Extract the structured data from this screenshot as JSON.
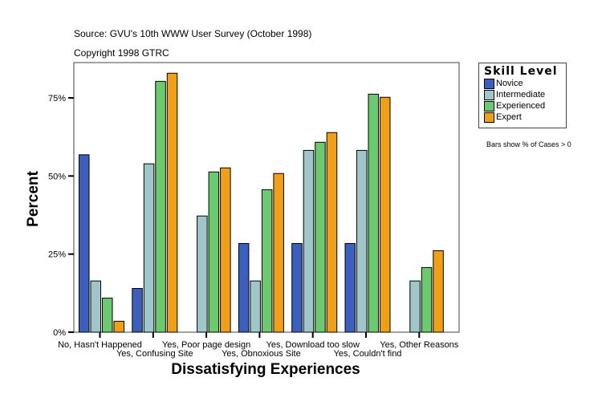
{
  "header": {
    "source": "Source: GVU's 10th WWW User Survey (October 1998)",
    "copyright": "Copyright 1998 GTRC"
  },
  "note": "Bars show % of Cases > 0",
  "chart_data": {
    "type": "bar",
    "xlabel": "Dissatisfying Experiences",
    "ylabel": "Percent",
    "ylim": [
      0,
      86
    ],
    "yticks": [
      {
        "v": 0,
        "label": "0%"
      },
      {
        "v": 25,
        "label": "25%"
      },
      {
        "v": 50,
        "label": "50%"
      },
      {
        "v": 75,
        "label": "75%"
      }
    ],
    "grid": false,
    "legend": {
      "title": "Skill Level",
      "placement": "right"
    },
    "categories": [
      "No, Hasn't Happened",
      "Yes, Confusing Site",
      "Yes, Poor page design",
      "Yes, Obnoxious Site",
      "Yes, Download too slow",
      "Yes, Couldn't find",
      "Yes, Other Reasons"
    ],
    "series": [
      {
        "name": "Novice",
        "color": "#3a5fbf",
        "values": [
          56.8,
          14.0,
          null,
          28.4,
          28.4,
          28.4,
          null
        ]
      },
      {
        "name": "Intermediate",
        "color": "#9fc7c9",
        "values": [
          16.4,
          53.9,
          37.2,
          16.4,
          58.2,
          58.2,
          16.4
        ]
      },
      {
        "name": "Experienced",
        "color": "#6bc96e",
        "values": [
          10.9,
          80.3,
          51.3,
          45.6,
          60.8,
          76.2,
          20.7
        ]
      },
      {
        "name": "Expert",
        "color": "#f29f18",
        "values": [
          3.5,
          82.9,
          52.6,
          50.8,
          63.9,
          75.2,
          26.1
        ]
      }
    ]
  }
}
